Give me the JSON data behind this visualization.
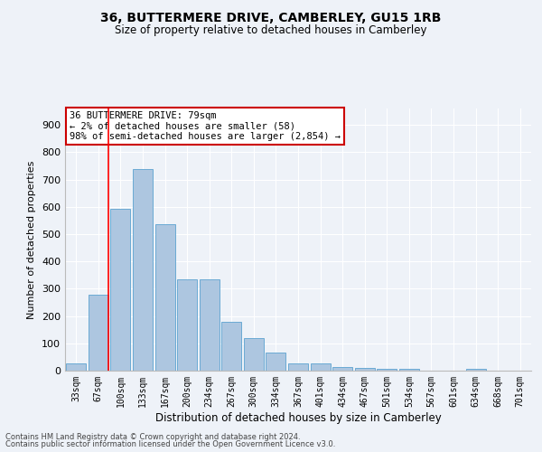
{
  "title": "36, BUTTERMERE DRIVE, CAMBERLEY, GU15 1RB",
  "subtitle": "Size of property relative to detached houses in Camberley",
  "xlabel": "Distribution of detached houses by size in Camberley",
  "ylabel": "Number of detached properties",
  "bar_color": "#adc6e0",
  "bar_edge_color": "#6aaad4",
  "background_color": "#eef2f8",
  "grid_color": "#ffffff",
  "categories": [
    "33sqm",
    "67sqm",
    "100sqm",
    "133sqm",
    "167sqm",
    "200sqm",
    "234sqm",
    "267sqm",
    "300sqm",
    "334sqm",
    "367sqm",
    "401sqm",
    "434sqm",
    "467sqm",
    "501sqm",
    "534sqm",
    "567sqm",
    "601sqm",
    "634sqm",
    "668sqm",
    "701sqm"
  ],
  "values": [
    25,
    278,
    593,
    738,
    535,
    335,
    335,
    178,
    120,
    65,
    25,
    25,
    12,
    10,
    8,
    5,
    0,
    0,
    5,
    0,
    0
  ],
  "ylim": [
    0,
    960
  ],
  "yticks": [
    0,
    100,
    200,
    300,
    400,
    500,
    600,
    700,
    800,
    900
  ],
  "annotation_text": "36 BUTTERMERE DRIVE: 79sqm\n← 2% of detached houses are smaller (58)\n98% of semi-detached houses are larger (2,854) →",
  "annotation_box_color": "#ffffff",
  "annotation_box_edge": "#cc0000",
  "footnote1": "Contains HM Land Registry data © Crown copyright and database right 2024.",
  "footnote2": "Contains public sector information licensed under the Open Government Licence v3.0."
}
